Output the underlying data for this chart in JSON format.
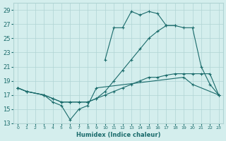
{
  "xlabel": "Humidex (Indice chaleur)",
  "ylim": [
    13,
    30
  ],
  "yticks": [
    13,
    15,
    17,
    19,
    21,
    23,
    25,
    27,
    29
  ],
  "xlim": [
    -0.5,
    23.5
  ],
  "bg_color": "#d4eeed",
  "grid_color": "#b0d4d4",
  "line_color": "#1a6b6b",
  "line1_x": [
    0,
    1,
    3,
    4,
    5,
    6,
    7,
    8,
    9,
    19,
    20,
    23
  ],
  "line1_y": [
    18.0,
    17.5,
    17.0,
    16.0,
    15.5,
    13.5,
    15.0,
    15.5,
    18.0,
    19.5,
    18.5,
    17.0
  ],
  "line2_x": [
    0,
    1,
    3,
    4,
    5,
    6,
    7,
    8,
    9,
    10,
    11,
    12,
    13,
    14,
    15,
    16,
    17,
    18,
    19,
    20,
    21,
    22,
    23
  ],
  "line2_y": [
    18.0,
    17.5,
    17.0,
    16.5,
    16.0,
    16.0,
    16.0,
    16.0,
    16.5,
    17.0,
    17.5,
    18.0,
    18.5,
    19.0,
    19.5,
    19.5,
    19.8,
    20.0,
    20.0,
    20.0,
    20.0,
    20.0,
    17.0
  ],
  "line3_x": [
    10,
    11,
    12,
    13,
    14,
    15,
    16,
    17,
    18
  ],
  "line3_y": [
    22.0,
    26.5,
    26.5,
    28.8,
    28.3,
    28.8,
    28.5,
    26.8,
    26.8
  ],
  "line4_x": [
    0,
    1,
    3,
    4,
    5,
    6,
    7,
    8,
    9,
    10,
    11,
    12,
    13,
    14,
    15,
    16,
    17,
    18,
    19,
    20,
    21,
    22,
    23
  ],
  "line4_y": [
    18.0,
    17.5,
    17.0,
    16.5,
    16.0,
    16.0,
    16.0,
    16.0,
    16.5,
    17.5,
    19.0,
    20.5,
    22.0,
    23.5,
    25.0,
    26.0,
    26.8,
    26.8,
    26.5,
    26.5,
    21.0,
    18.5,
    17.0
  ]
}
